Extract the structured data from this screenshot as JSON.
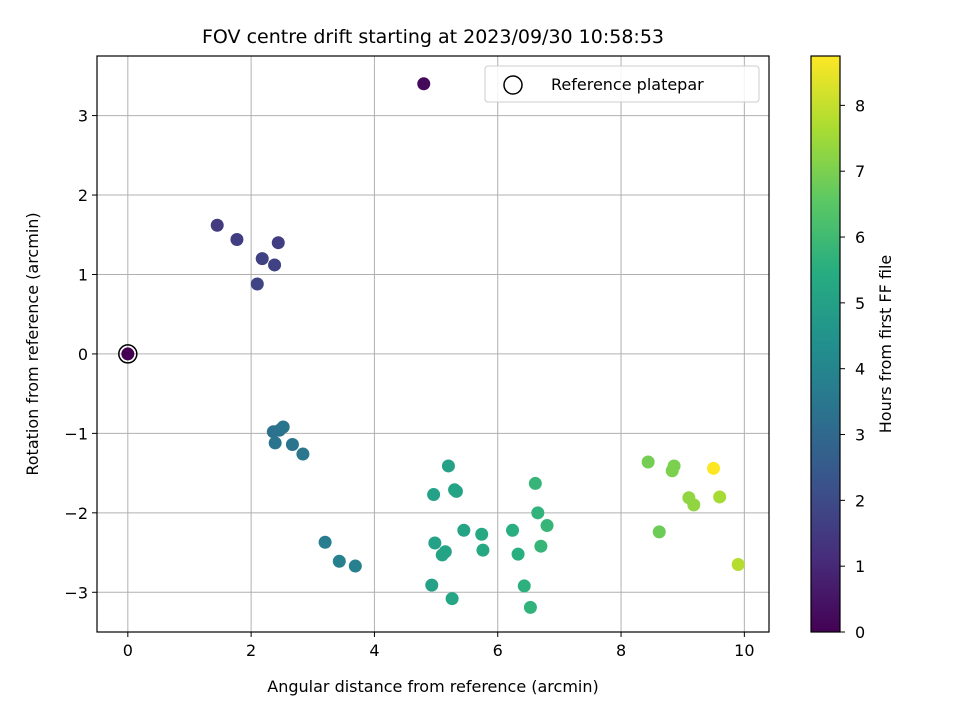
{
  "chart_data": {
    "type": "scatter",
    "title": "FOV centre drift starting at 2023/09/30 10:58:53",
    "xlabel": "Angular distance from reference (arcmin)",
    "ylabel": "Rotation from reference (arcmin)",
    "xlim": [
      -0.5,
      10.4
    ],
    "ylim": [
      -3.5,
      3.75
    ],
    "xticks": [
      0,
      2,
      4,
      6,
      8,
      10
    ],
    "yticks": [
      -3,
      -2,
      -1,
      0,
      1,
      2,
      3
    ],
    "grid": true,
    "legend": {
      "position": "top-right",
      "entries": [
        "Reference platepar"
      ]
    },
    "reference_point": {
      "x": 0,
      "y": 0
    },
    "colorbar": {
      "label": "Hours from first FF file",
      "range": [
        0,
        8.75
      ],
      "ticks": [
        0,
        1,
        2,
        3,
        4,
        5,
        6,
        7,
        8
      ],
      "colormap": "viridis"
    },
    "points": [
      {
        "x": 0.0,
        "y": 0.0,
        "hours": 0.0
      },
      {
        "x": 4.8,
        "y": 3.4,
        "hours": 0.2
      },
      {
        "x": 1.45,
        "y": 1.62,
        "hours": 1.5
      },
      {
        "x": 1.77,
        "y": 1.44,
        "hours": 1.6
      },
      {
        "x": 2.18,
        "y": 1.2,
        "hours": 1.7
      },
      {
        "x": 2.44,
        "y": 1.4,
        "hours": 1.6
      },
      {
        "x": 2.38,
        "y": 1.12,
        "hours": 1.7
      },
      {
        "x": 2.1,
        "y": 0.88,
        "hours": 1.8
      },
      {
        "x": 2.36,
        "y": -0.98,
        "hours": 3.3
      },
      {
        "x": 2.46,
        "y": -0.96,
        "hours": 3.3
      },
      {
        "x": 2.52,
        "y": -0.92,
        "hours": 3.4
      },
      {
        "x": 2.39,
        "y": -1.12,
        "hours": 3.4
      },
      {
        "x": 2.67,
        "y": -1.14,
        "hours": 3.4
      },
      {
        "x": 2.84,
        "y": -1.26,
        "hours": 3.5
      },
      {
        "x": 3.2,
        "y": -2.37,
        "hours": 3.7
      },
      {
        "x": 3.43,
        "y": -2.61,
        "hours": 3.8
      },
      {
        "x": 3.69,
        "y": -2.67,
        "hours": 3.8
      },
      {
        "x": 5.2,
        "y": -1.41,
        "hours": 5.0
      },
      {
        "x": 4.96,
        "y": -1.77,
        "hours": 5.0
      },
      {
        "x": 5.3,
        "y": -1.71,
        "hours": 5.1
      },
      {
        "x": 5.33,
        "y": -1.73,
        "hours": 5.1
      },
      {
        "x": 5.45,
        "y": -2.22,
        "hours": 5.1
      },
      {
        "x": 4.98,
        "y": -2.38,
        "hours": 5.0
      },
      {
        "x": 5.15,
        "y": -2.49,
        "hours": 5.1
      },
      {
        "x": 5.1,
        "y": -2.53,
        "hours": 5.1
      },
      {
        "x": 4.93,
        "y": -2.91,
        "hours": 5.0
      },
      {
        "x": 5.26,
        "y": -3.08,
        "hours": 5.2
      },
      {
        "x": 5.74,
        "y": -2.27,
        "hours": 5.3
      },
      {
        "x": 5.76,
        "y": -2.47,
        "hours": 5.3
      },
      {
        "x": 6.24,
        "y": -2.22,
        "hours": 5.5
      },
      {
        "x": 6.33,
        "y": -2.52,
        "hours": 5.5
      },
      {
        "x": 6.43,
        "y": -2.92,
        "hours": 5.6
      },
      {
        "x": 6.53,
        "y": -3.19,
        "hours": 5.7
      },
      {
        "x": 6.61,
        "y": -1.63,
        "hours": 5.8
      },
      {
        "x": 6.65,
        "y": -2.0,
        "hours": 5.7
      },
      {
        "x": 6.8,
        "y": -2.16,
        "hours": 5.8
      },
      {
        "x": 6.7,
        "y": -2.42,
        "hours": 5.8
      },
      {
        "x": 8.44,
        "y": -1.36,
        "hours": 6.9
      },
      {
        "x": 8.62,
        "y": -2.24,
        "hours": 6.8
      },
      {
        "x": 8.83,
        "y": -1.47,
        "hours": 7.0
      },
      {
        "x": 8.86,
        "y": -1.41,
        "hours": 7.0
      },
      {
        "x": 9.1,
        "y": -1.81,
        "hours": 7.3
      },
      {
        "x": 9.18,
        "y": -1.9,
        "hours": 7.3
      },
      {
        "x": 9.5,
        "y": -1.44,
        "hours": 8.75
      },
      {
        "x": 9.6,
        "y": -1.8,
        "hours": 7.6
      },
      {
        "x": 9.9,
        "y": -2.65,
        "hours": 7.8
      }
    ]
  }
}
